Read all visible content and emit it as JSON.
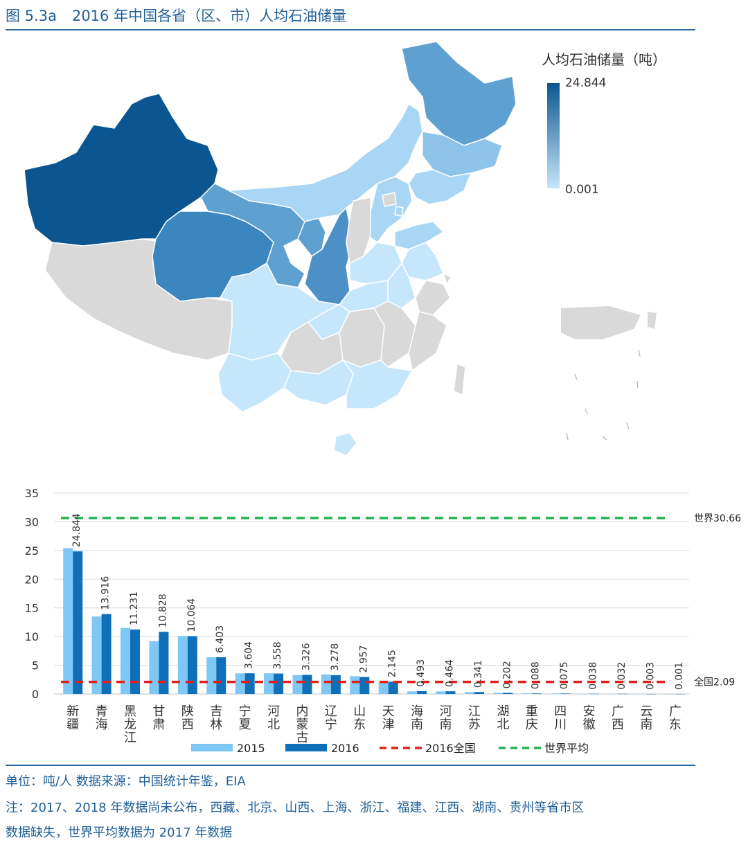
{
  "figure": {
    "number": "图 5.3a",
    "title": "2016 年中国各省（区、市）人均石油储量"
  },
  "map_legend": {
    "title": "人均石油储量（吨）",
    "max": "24.844",
    "min": "0.001",
    "color_high": "#0b5690",
    "color_low": "#c6e6fb",
    "no_data_color": "#d9d9d9"
  },
  "chart_data": {
    "type": "bar",
    "categories": [
      "新疆",
      "青海",
      "黑龙江",
      "甘肃",
      "陕西",
      "吉林",
      "宁夏",
      "河北",
      "内蒙古",
      "辽宁",
      "山东",
      "天津",
      "海南",
      "河南",
      "江苏",
      "湖北",
      "重庆",
      "四川",
      "安徽",
      "广西",
      "云南",
      "广东"
    ],
    "series": [
      {
        "name": "2015",
        "color": "#7fc8f5",
        "values": [
          25.4,
          13.5,
          11.5,
          9.2,
          10.1,
          6.4,
          3.6,
          3.6,
          3.3,
          3.4,
          3.1,
          2.0,
          0.45,
          0.45,
          0.33,
          0.2,
          0.09,
          0.08,
          0.04,
          0.03,
          0.003,
          0.001
        ]
      },
      {
        "name": "2016",
        "color": "#0f6fb8",
        "values": [
          24.844,
          13.916,
          11.231,
          10.828,
          10.064,
          6.403,
          3.604,
          3.558,
          3.326,
          3.278,
          2.957,
          2.145,
          0.493,
          0.464,
          0.341,
          0.202,
          0.088,
          0.075,
          0.038,
          0.032,
          0.003,
          0.001
        ]
      }
    ],
    "data_labels": [
      "24.844",
      "13.916",
      "11.231",
      "10.828",
      "10.064",
      "6.403",
      "3.604",
      "3.558",
      "3.326",
      "3.278",
      "2.957",
      "2.145",
      "0.493",
      "0.464",
      "0.341",
      "0.202",
      "0.088",
      "0.075",
      "0.038",
      "0.032",
      "0.003",
      "0.001"
    ],
    "reference_lines": [
      {
        "name": "2016全国",
        "value": 2.09,
        "label": "全国2.09",
        "color": "#e0201c"
      },
      {
        "name": "世界平均",
        "value": 30.66,
        "label": "世界30.66",
        "color": "#22b14c"
      }
    ],
    "ylim": [
      0,
      35
    ],
    "yticks": [
      0,
      5,
      10,
      15,
      20,
      25,
      30,
      35
    ],
    "grid": true,
    "legend_position": "bottom"
  },
  "footer": {
    "unit_source": "单位：吨/人  数据来源：中国统计年鉴，EIA",
    "note_line1": "注：2017、2018 年数据尚未公布，西藏、北京、山西、上海、浙江、福建、江西、湖南、贵州等省市区",
    "note_line2": "数据缺失，世界平均数据为 2017 年数据"
  }
}
